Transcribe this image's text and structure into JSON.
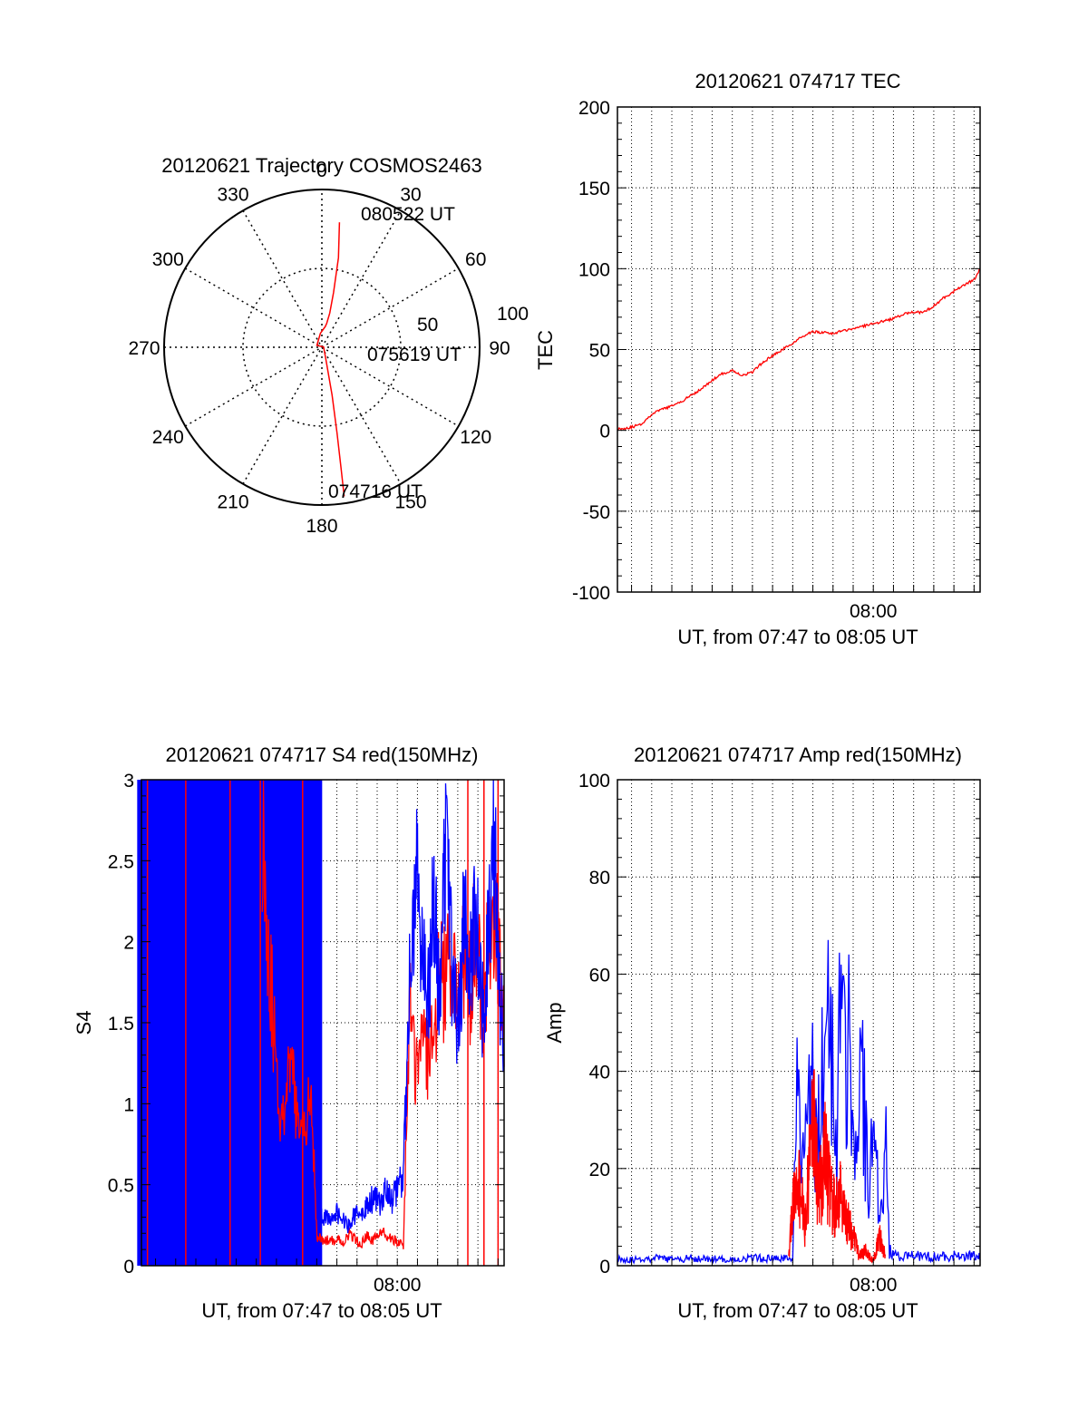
{
  "colors": {
    "red": "#ff0000",
    "blue": "#0000ff",
    "axis": "#000000",
    "grid": "#000000"
  },
  "chart_data": [
    {
      "id": "polar",
      "type": "polar",
      "title": "20120621 Trajectory COSMOS2463",
      "angle_labels": [
        "0",
        "30",
        "60",
        "90",
        "120",
        "150",
        "180",
        "210",
        "240",
        "270",
        "300",
        "330"
      ],
      "radial_labels": [
        "50",
        "100"
      ],
      "annotations": [
        {
          "text": "080522 UT",
          "az": 12.8,
          "el": 28
        },
        {
          "text": "075619 UT",
          "az": 90,
          "el": 90
        },
        {
          "text": "074716 UT",
          "az": 167.5,
          "el": 4
        }
      ],
      "series": [
        {
          "color": "red",
          "points": [
            [
              8.0,
              18
            ],
            [
              10.5,
              38
            ],
            [
              12.0,
              58
            ],
            [
              13.0,
              70
            ],
            [
              11.5,
              76
            ],
            [
              9.5,
              78
            ],
            [
              -6,
              82
            ],
            [
              -70,
              87
            ],
            [
              80,
              89
            ],
            [
              160,
              84
            ],
            [
              168,
              62
            ],
            [
              170,
              40
            ],
            [
              171,
              20
            ],
            [
              171.5,
              4
            ]
          ]
        }
      ]
    },
    {
      "id": "tec",
      "type": "line",
      "title": "20120621 074717 TEC",
      "ylabel": "TEC",
      "xlabel": "UT, from 07:47 to 08:05 UT",
      "xlim": [
        47.3,
        65.3
      ],
      "ylim": [
        -100,
        200
      ],
      "yticks": [
        "-100",
        "-50",
        "0",
        "50",
        "100",
        "150",
        "200"
      ],
      "xticks": [
        {
          "t": 60,
          "label": "08:00"
        }
      ],
      "series": [
        {
          "color": "red",
          "x": [
            47.3,
            47.5,
            48.0,
            48.5,
            49.0,
            49.5,
            50.0,
            50.5,
            51.0,
            51.5,
            52.0,
            52.5,
            53.0,
            53.5,
            54.0,
            54.5,
            55.0,
            55.5,
            56.0,
            56.5,
            57.0,
            58.0,
            59.0,
            60.0,
            61.0,
            61.5,
            62.0,
            62.5,
            63.0,
            63.5,
            64.0,
            64.5,
            65.0,
            65.3
          ],
          "y": [
            1,
            1,
            2,
            4,
            10,
            13,
            15,
            18,
            22,
            26,
            31,
            35,
            37,
            34,
            36,
            42,
            46,
            50,
            54,
            58,
            61,
            60,
            63,
            66,
            69,
            72,
            73,
            73,
            77,
            82,
            86,
            90,
            93,
            100
          ]
        }
      ]
    },
    {
      "id": "s4",
      "type": "line",
      "title": "20120621 074717 S4 red(150MHz)",
      "ylabel": "S4",
      "xlabel": "UT, from 07:47 to 08:05 UT",
      "xlim": [
        47.3,
        65.3
      ],
      "ylim": [
        0,
        3
      ],
      "yticks": [
        "0",
        "0.5",
        "1",
        "1.5",
        "2",
        "2.5",
        "3"
      ],
      "xticks": [
        {
          "t": 60,
          "label": "08:00"
        }
      ],
      "series": [
        {
          "color": "red",
          "x": [
            53.3,
            53.6,
            53.9,
            54.2,
            54.5,
            54.8,
            55.1,
            55.4,
            55.7,
            55.9,
            56.0,
            56.3,
            56.7,
            57.0,
            57.3,
            57.6,
            57.9,
            58.2,
            58.5,
            58.8,
            59.1,
            59.4,
            59.7,
            60.0,
            60.3,
            60.6,
            60.9,
            61.2,
            61.5,
            61.8,
            62.1,
            62.4,
            62.7,
            63.0,
            63.3,
            63.6,
            63.9,
            64.2,
            64.5,
            64.8,
            65.1,
            65.3
          ],
          "y": [
            2.8,
            2.0,
            1.4,
            0.9,
            1.1,
            1.2,
            0.8,
            0.9,
            1.0,
            0.6,
            0.18,
            0.16,
            0.15,
            0.17,
            0.14,
            0.2,
            0.16,
            0.13,
            0.18,
            0.15,
            0.22,
            0.18,
            0.16,
            0.15,
            0.12,
            1.6,
            1.2,
            1.5,
            1.3,
            1.4,
            1.8,
            1.7,
            2.0,
            1.5,
            1.9,
            1.7,
            2.1,
            1.6,
            1.9,
            2.2,
            1.8,
            1.5
          ]
        },
        {
          "color": "blue",
          "x": [
            56.0,
            56.3,
            56.7,
            57.0,
            57.3,
            57.6,
            57.9,
            58.2,
            58.5,
            58.8,
            59.1,
            59.4,
            59.7,
            60.0,
            60.3,
            60.6,
            60.9,
            61.2,
            61.5,
            61.8,
            62.1,
            62.4,
            62.7,
            63.0,
            63.3,
            63.6,
            63.9,
            64.2,
            64.5,
            64.8,
            65.1,
            65.3
          ],
          "y": [
            0.26,
            0.3,
            0.28,
            0.34,
            0.27,
            0.25,
            0.32,
            0.3,
            0.36,
            0.42,
            0.38,
            0.45,
            0.4,
            0.47,
            0.55,
            1.8,
            2.4,
            2.0,
            1.6,
            2.2,
            1.7,
            2.5,
            1.9,
            1.4,
            2.1,
            1.8,
            2.3,
            1.5,
            2.0,
            2.6,
            1.7,
            1.3
          ]
        }
      ],
      "spikes": [
        {
          "color": "blue",
          "x": [
            47.35,
            47.6,
            47.9,
            48.1,
            48.3,
            48.55,
            48.8,
            49.0,
            49.2,
            49.45,
            49.7,
            49.9,
            50.1,
            50.35,
            50.6,
            50.8,
            51.0,
            51.2,
            51.4,
            51.6,
            51.8,
            52.0,
            52.2,
            52.4,
            52.6,
            52.8,
            53.0,
            53.2,
            53.5,
            53.8,
            54.0,
            54.3,
            54.6,
            54.9,
            55.2,
            55.5,
            55.8,
            56.0
          ]
        },
        {
          "color": "red",
          "x": [
            47.6,
            49.5,
            51.7,
            53.2,
            55.3,
            63.5,
            64.3,
            65.0
          ]
        }
      ]
    },
    {
      "id": "amp",
      "type": "line",
      "title": "20120621 074717 Amp red(150MHz)",
      "ylabel": "Amp",
      "xlabel": "UT, from 07:47 to 08:05 UT",
      "xlim": [
        47.3,
        65.3
      ],
      "ylim": [
        0,
        100
      ],
      "yticks": [
        "0",
        "20",
        "40",
        "60",
        "80",
        "100"
      ],
      "xticks": [
        {
          "t": 60,
          "label": "08:00"
        }
      ],
      "series": [
        {
          "color": "blue",
          "x": [
            47.3,
            48.0,
            49.0,
            50.0,
            51.0,
            52.0,
            53.0,
            54.0,
            55.0,
            55.8,
            56.0,
            56.2,
            56.4,
            56.6,
            56.8,
            57.0,
            57.2,
            57.4,
            57.6,
            57.8,
            58.0,
            58.2,
            58.4,
            58.6,
            58.8,
            59.0,
            59.2,
            59.4,
            59.6,
            59.8,
            60.0,
            60.2,
            60.4,
            60.6,
            60.8,
            61.0,
            62.0,
            63.0,
            64.0,
            65.3
          ],
          "y": [
            1.5,
            1.2,
            1.6,
            1.3,
            1.5,
            1.4,
            1.2,
            1.6,
            1.4,
            1.5,
            2,
            40,
            15,
            32,
            28,
            35,
            20,
            45,
            30,
            62,
            40,
            25,
            55,
            38,
            50,
            30,
            22,
            44,
            28,
            12,
            30,
            20,
            8,
            25,
            3,
            2,
            2,
            1.8,
            2,
            2
          ]
        },
        {
          "color": "red",
          "x": [
            55.8,
            56.0,
            56.3,
            56.6,
            57.0,
            57.3,
            57.6,
            58.0,
            58.3,
            58.6,
            59.0,
            59.3,
            59.6,
            60.0,
            60.3,
            60.6
          ],
          "y": [
            1.5,
            12,
            18,
            8,
            30,
            14,
            22,
            12,
            15,
            10,
            6,
            2,
            3,
            1,
            6,
            2
          ]
        }
      ]
    }
  ]
}
